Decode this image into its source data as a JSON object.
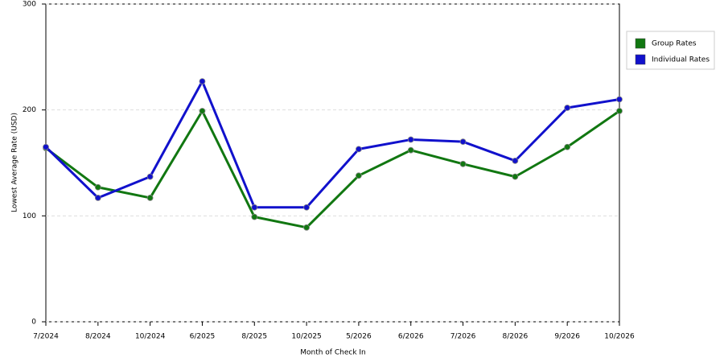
{
  "chart_data": {
    "type": "line",
    "x_label": "Month of Check In",
    "y_label": "Lowest Average Rate (USD)",
    "categories": [
      "7/2024",
      "8/2024",
      "10/2024",
      "6/2025",
      "8/2025",
      "10/2025",
      "5/2026",
      "6/2026",
      "7/2026",
      "8/2026",
      "9/2026",
      "10/2026"
    ],
    "series": [
      {
        "name": "Group Rates",
        "color": "#117711",
        "values": [
          164,
          127,
          117,
          199,
          99,
          89,
          138,
          162,
          149,
          137,
          165,
          199
        ]
      },
      {
        "name": "Individual Rates",
        "color": "#1111cc",
        "values": [
          165,
          117,
          137,
          227,
          108,
          108,
          163,
          172,
          170,
          152,
          202,
          210
        ]
      }
    ],
    "ylim": [
      0,
      300
    ],
    "yticks": [
      0,
      100,
      200,
      300
    ],
    "grid": true
  }
}
